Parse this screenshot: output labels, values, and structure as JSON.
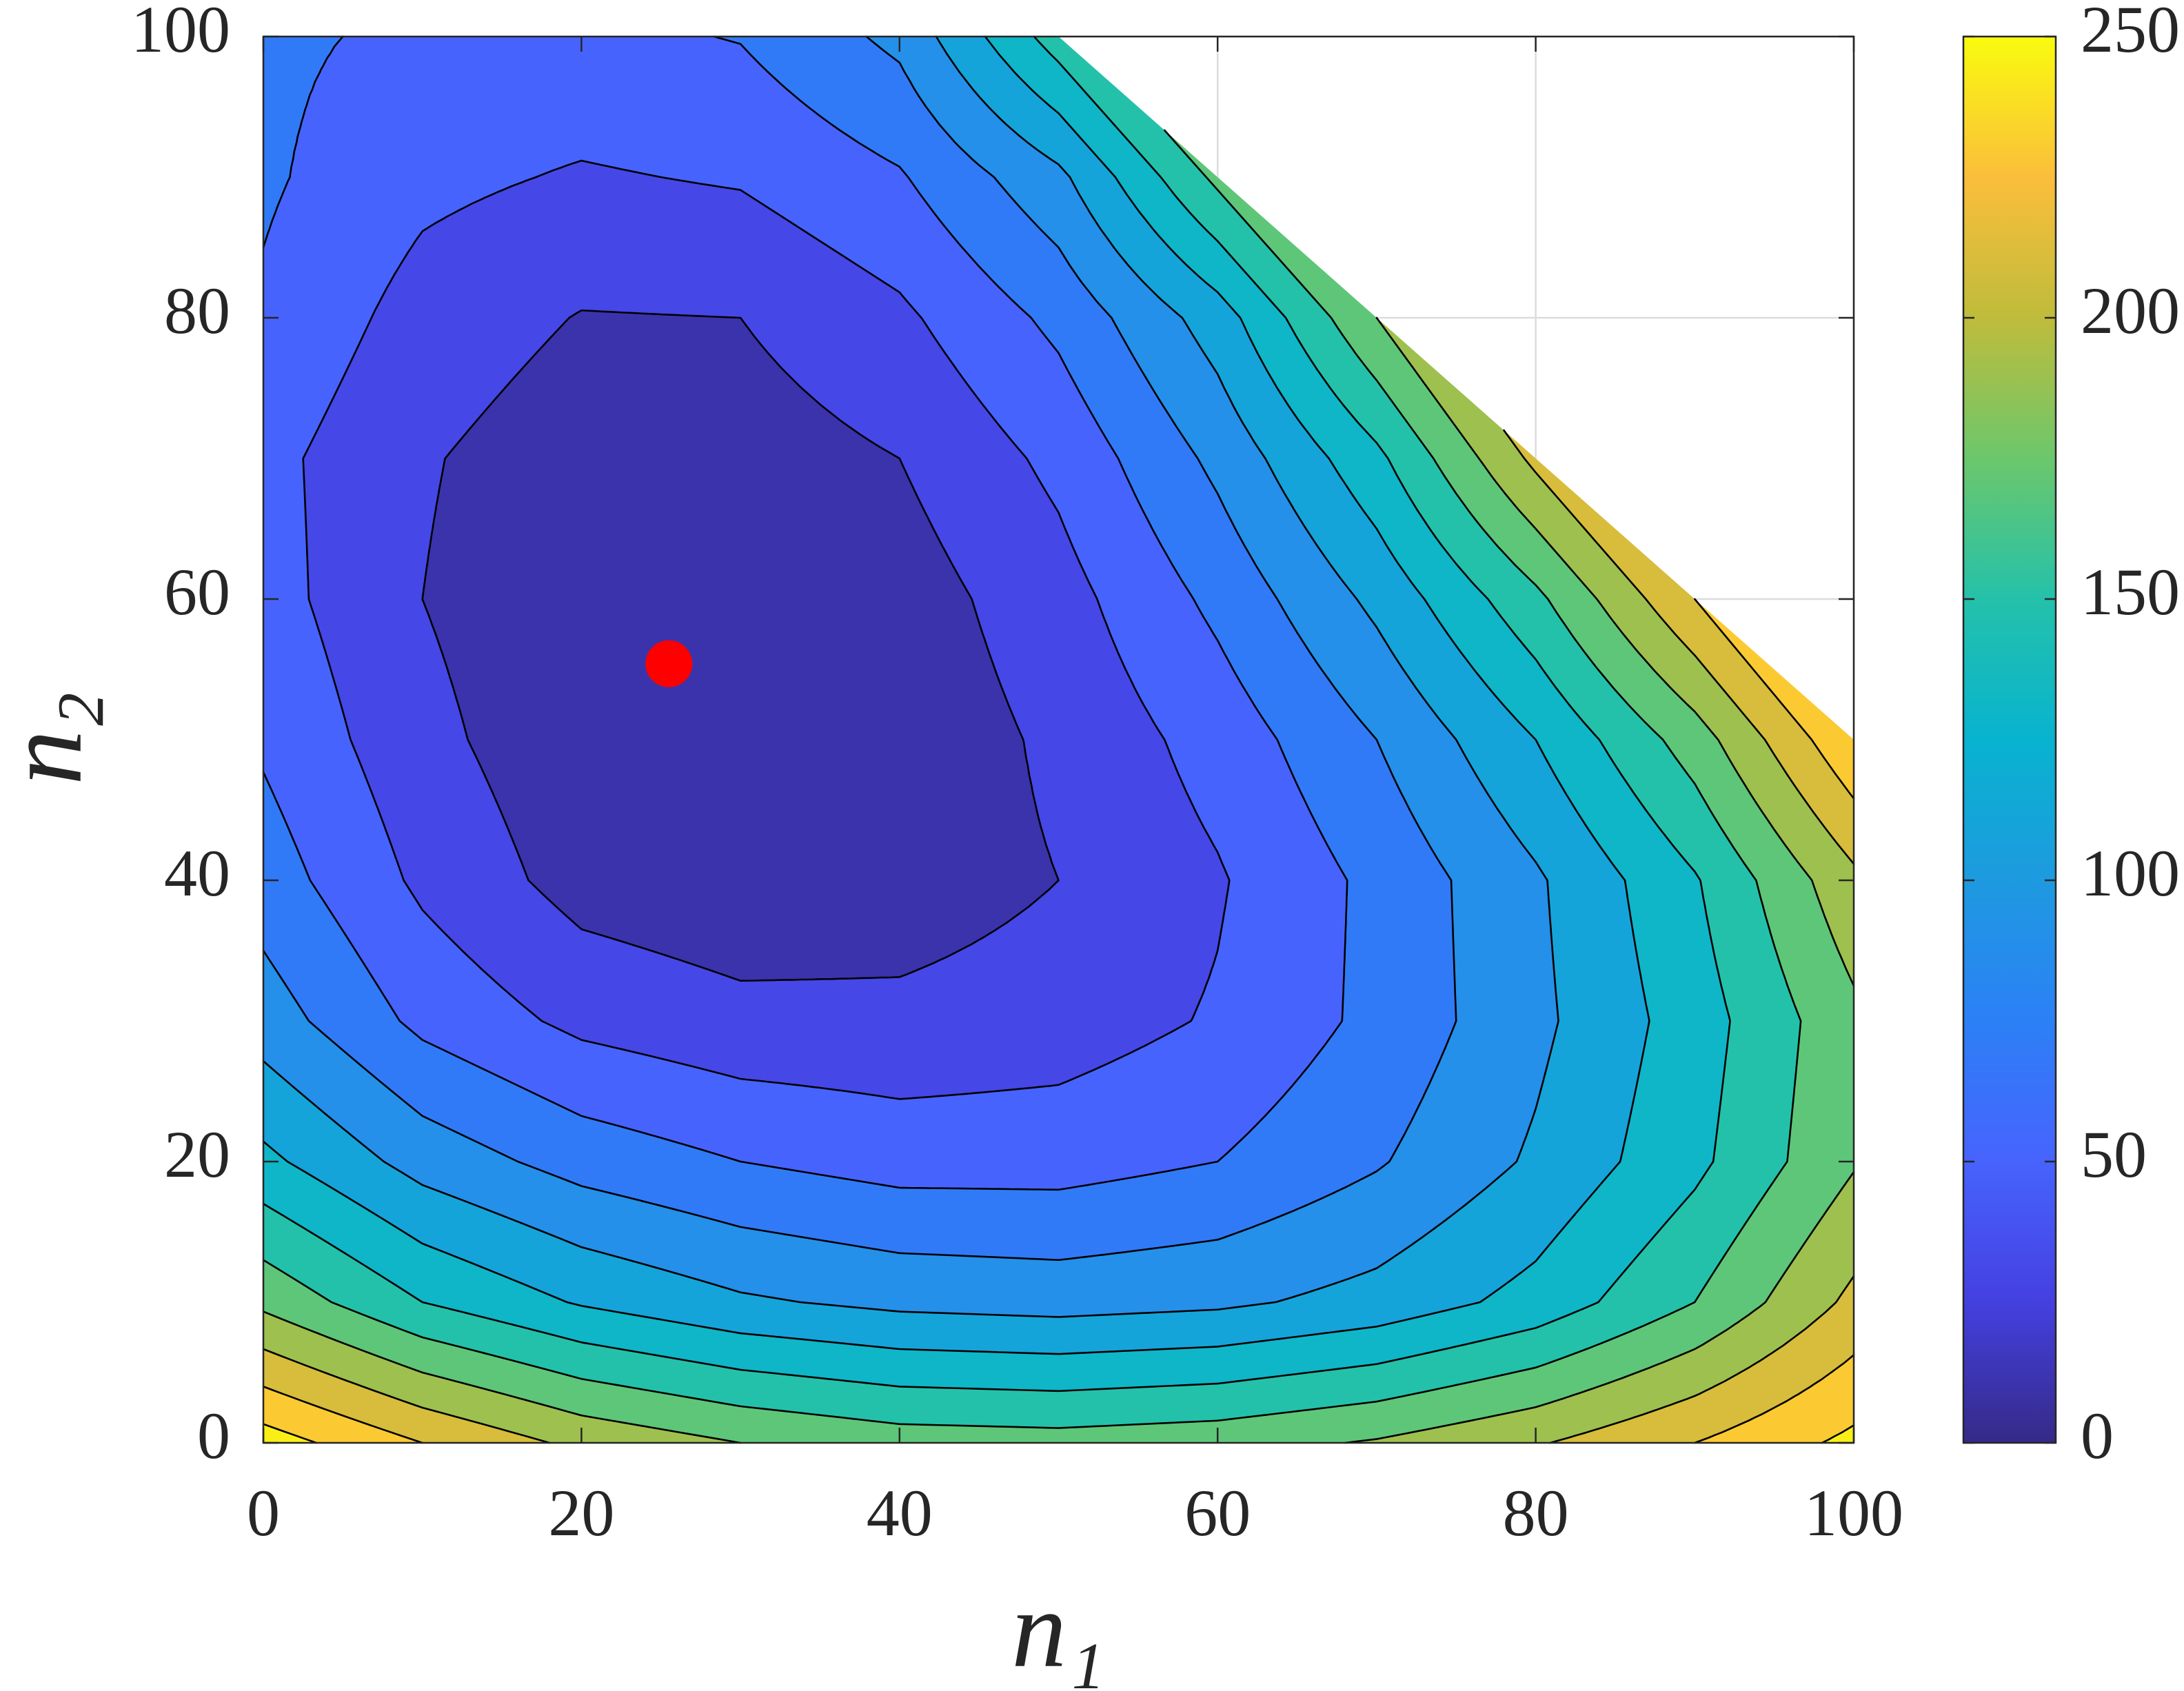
{
  "chart_data": {
    "type": "contour",
    "xlabel": "n₁",
    "ylabel": "n₂",
    "x": [
      0,
      10,
      20,
      30,
      40,
      50,
      60,
      70,
      80,
      90,
      100
    ],
    "y": [
      0,
      10,
      20,
      30,
      40,
      50,
      60,
      70,
      80,
      90,
      100
    ],
    "z": [
      [
        250,
        220,
        195,
        180,
        170,
        168,
        172,
        182,
        198,
        220,
        245
      ],
      [
        175,
        140,
        118,
        103,
        95,
        92,
        96,
        107,
        127,
        160,
        205
      ],
      [
        125,
        92,
        72,
        60,
        52,
        52,
        60,
        78,
        103,
        135,
        178
      ],
      [
        90,
        55,
        35,
        26,
        25,
        30,
        42,
        65,
        95,
        130,
        175
      ],
      [
        70,
        36,
        12,
        5,
        9,
        20,
        38,
        65,
        97,
        138,
        195
      ],
      [
        57,
        26,
        5,
        1,
        6,
        24,
        48,
        80,
        120,
        170,
        238
      ],
      [
        48,
        20,
        3,
        2,
        10,
        32,
        65,
        105,
        155,
        220,
        null
      ],
      [
        46,
        22,
        8,
        10,
        20,
        45,
        85,
        135,
        205,
        null,
        null
      ],
      [
        57,
        32,
        19,
        20,
        36,
        65,
        110,
        180,
        null,
        null,
        null
      ],
      [
        63,
        45,
        38,
        42,
        58,
        95,
        165,
        null,
        null,
        null,
        null
      ],
      [
        64,
        56,
        55,
        61,
        85,
        150,
        null,
        null,
        null,
        null,
        null
      ]
    ],
    "levels": [
      0,
      20,
      40,
      60,
      80,
      100,
      120,
      140,
      160,
      180,
      200,
      220,
      240
    ],
    "line_color": "#000000",
    "clim": [
      0,
      250
    ],
    "cticks": [
      0,
      50,
      100,
      150,
      200,
      250
    ],
    "colormap": [
      "#352a87",
      "#4440e0",
      "#4763fd",
      "#2c80f6",
      "#1e9ae0",
      "#08b3cf",
      "#24c1aa",
      "#6cc76c",
      "#bfbc3b",
      "#fbbe3b",
      "#f9fb0e"
    ],
    "xlim": [
      0,
      100
    ],
    "ylim": [
      0,
      100
    ],
    "xticks": [
      0,
      20,
      40,
      60,
      80,
      100
    ],
    "yticks": [
      0,
      20,
      40,
      60,
      80,
      100
    ],
    "grid": true,
    "marker": {
      "x": 25.5,
      "y": 55.4,
      "color": "#ff0000"
    }
  }
}
